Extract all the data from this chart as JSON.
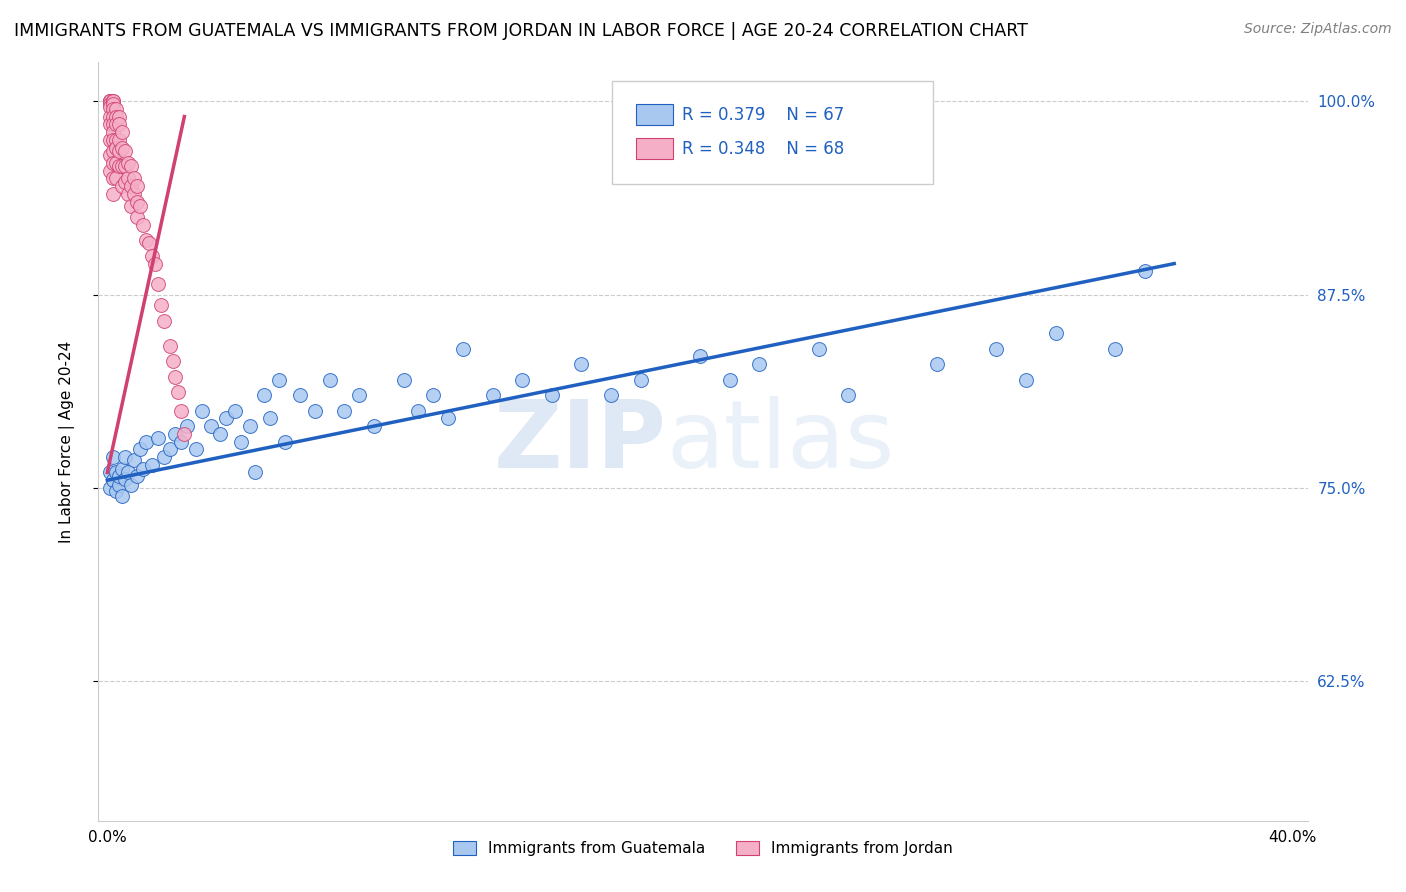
{
  "title": "IMMIGRANTS FROM GUATEMALA VS IMMIGRANTS FROM JORDAN IN LABOR FORCE | AGE 20-24 CORRELATION CHART",
  "source": "Source: ZipAtlas.com",
  "ylabel_label": "In Labor Force | Age 20-24",
  "legend_label1": "Immigrants from Guatemala",
  "legend_label2": "Immigrants from Jordan",
  "legend_R1": "R = 0.379",
  "legend_N1": "N = 67",
  "legend_R2": "R = 0.348",
  "legend_N2": "N = 68",
  "color_blue": "#A8C8F0",
  "color_pink": "#F5B0C8",
  "color_blue_text": "#2060C0",
  "color_pink_text": "#D04070",
  "trendline_blue": "#2060C0",
  "trendline_pink": "#D04070",
  "watermark_zip": "ZIP",
  "watermark_atlas": "atlas",
  "xlim": [
    -0.003,
    0.405
  ],
  "ylim": [
    0.535,
    1.025
  ],
  "xticks": [
    0.0,
    0.08,
    0.16,
    0.24,
    0.32,
    0.4
  ],
  "xticklabels": [
    "0.0%",
    "",
    "",
    "",
    "",
    "40.0%"
  ],
  "yticks": [
    0.625,
    0.75,
    0.875,
    1.0
  ],
  "yticklabels_right": [
    "62.5%",
    "75.0%",
    "87.5%",
    "100.0%"
  ],
  "blue_x": [
    0.001,
    0.001,
    0.002,
    0.002,
    0.003,
    0.003,
    0.004,
    0.004,
    0.005,
    0.005,
    0.006,
    0.006,
    0.007,
    0.008,
    0.009,
    0.01,
    0.011,
    0.012,
    0.013,
    0.015,
    0.017,
    0.019,
    0.021,
    0.023,
    0.025,
    0.027,
    0.03,
    0.032,
    0.035,
    0.038,
    0.04,
    0.043,
    0.045,
    0.048,
    0.05,
    0.053,
    0.055,
    0.058,
    0.06,
    0.065,
    0.07,
    0.075,
    0.08,
    0.085,
    0.09,
    0.1,
    0.105,
    0.11,
    0.115,
    0.12,
    0.13,
    0.14,
    0.15,
    0.16,
    0.17,
    0.18,
    0.2,
    0.21,
    0.22,
    0.24,
    0.25,
    0.28,
    0.3,
    0.31,
    0.32,
    0.34,
    0.35
  ],
  "blue_y": [
    0.76,
    0.75,
    0.77,
    0.755,
    0.76,
    0.748,
    0.752,
    0.758,
    0.762,
    0.745,
    0.77,
    0.756,
    0.76,
    0.752,
    0.768,
    0.758,
    0.775,
    0.762,
    0.78,
    0.765,
    0.782,
    0.77,
    0.775,
    0.785,
    0.78,
    0.79,
    0.775,
    0.8,
    0.79,
    0.785,
    0.795,
    0.8,
    0.78,
    0.79,
    0.76,
    0.81,
    0.795,
    0.82,
    0.78,
    0.81,
    0.8,
    0.82,
    0.8,
    0.81,
    0.79,
    0.82,
    0.8,
    0.81,
    0.795,
    0.84,
    0.81,
    0.82,
    0.81,
    0.83,
    0.81,
    0.82,
    0.835,
    0.82,
    0.83,
    0.84,
    0.81,
    0.83,
    0.84,
    0.82,
    0.85,
    0.84,
    0.89
  ],
  "pink_x": [
    0.001,
    0.001,
    0.001,
    0.001,
    0.001,
    0.001,
    0.001,
    0.001,
    0.001,
    0.001,
    0.001,
    0.002,
    0.002,
    0.002,
    0.002,
    0.002,
    0.002,
    0.002,
    0.002,
    0.002,
    0.002,
    0.002,
    0.002,
    0.003,
    0.003,
    0.003,
    0.003,
    0.003,
    0.003,
    0.003,
    0.004,
    0.004,
    0.004,
    0.004,
    0.004,
    0.005,
    0.005,
    0.005,
    0.005,
    0.006,
    0.006,
    0.006,
    0.007,
    0.007,
    0.007,
    0.008,
    0.008,
    0.008,
    0.009,
    0.009,
    0.01,
    0.01,
    0.01,
    0.011,
    0.012,
    0.013,
    0.014,
    0.015,
    0.016,
    0.017,
    0.018,
    0.019,
    0.021,
    0.022,
    0.023,
    0.024,
    0.025,
    0.026
  ],
  "pink_y": [
    1.0,
    1.0,
    1.0,
    1.0,
    0.998,
    0.996,
    0.99,
    0.985,
    0.975,
    0.965,
    0.955,
    1.0,
    1.0,
    0.998,
    0.995,
    0.99,
    0.985,
    0.98,
    0.975,
    0.968,
    0.96,
    0.95,
    0.94,
    0.995,
    0.99,
    0.985,
    0.975,
    0.97,
    0.96,
    0.95,
    0.99,
    0.985,
    0.975,
    0.968,
    0.958,
    0.98,
    0.97,
    0.958,
    0.945,
    0.968,
    0.958,
    0.948,
    0.96,
    0.95,
    0.94,
    0.958,
    0.945,
    0.932,
    0.95,
    0.94,
    0.945,
    0.935,
    0.925,
    0.932,
    0.92,
    0.91,
    0.908,
    0.9,
    0.895,
    0.882,
    0.868,
    0.858,
    0.842,
    0.832,
    0.822,
    0.812,
    0.8,
    0.785
  ],
  "blue_trend_x": [
    0.0,
    0.36
  ],
  "blue_trend_y": [
    0.755,
    0.895
  ],
  "pink_trend_x": [
    0.0,
    0.026
  ],
  "pink_trend_y": [
    0.76,
    0.99
  ]
}
